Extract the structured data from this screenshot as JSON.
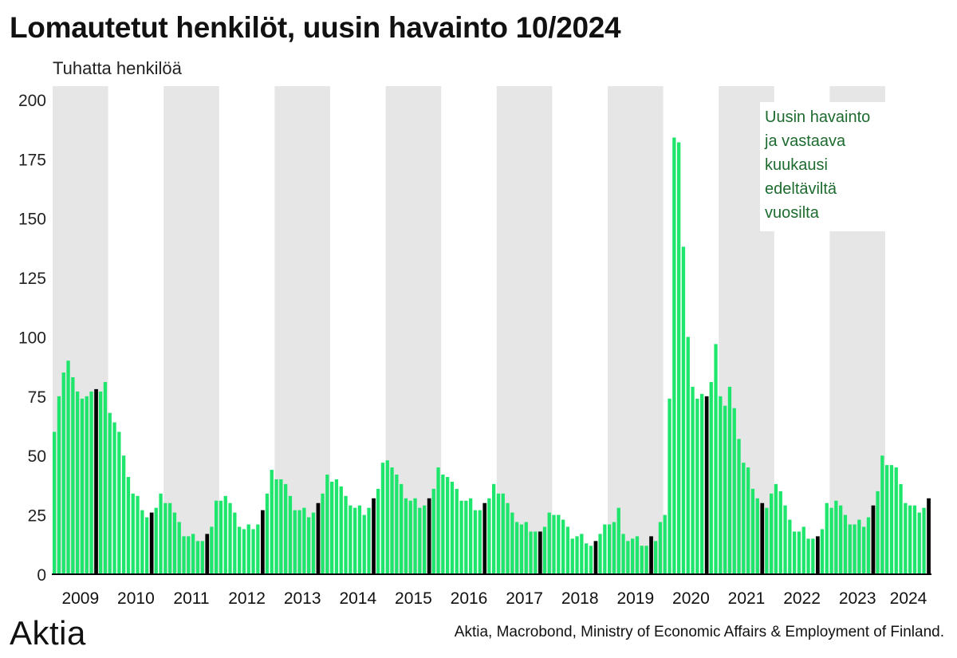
{
  "title": "Lomautetut henkilöt, uusin havainto 10/2024",
  "unit_label": "Tuhatta henkilöä",
  "annotation": "Uusin havainto ja vastaava kuukausi edeltäviltä vuosilta",
  "logo": "Aktia",
  "source": "Aktia, Macrobond, Ministry of Economic Affairs & Employment of Finland.",
  "colors": {
    "bar": "#1ee56b",
    "highlight": "#000000",
    "band": "#e6e6e6",
    "annotation_text": "#1d6b2f"
  },
  "chart_data": {
    "type": "bar",
    "title": "Lomautetut henkilöt, uusin havainto 10/2024",
    "ylabel": "Tuhatta henkilöä",
    "ylim": [
      0,
      205
    ],
    "yticks": [
      0,
      25,
      50,
      75,
      100,
      125,
      150,
      175,
      200
    ],
    "start": "2009-01",
    "end": "2024-10",
    "frequency": "monthly",
    "years": [
      "2009",
      "2010",
      "2011",
      "2012",
      "2013",
      "2014",
      "2015",
      "2016",
      "2017",
      "2018",
      "2019",
      "2020",
      "2021",
      "2022",
      "2023",
      "2024"
    ],
    "shaded_years": [
      "2009",
      "2011",
      "2013",
      "2015",
      "2017",
      "2019",
      "2021",
      "2023"
    ],
    "highlight_month": "10",
    "series": [
      {
        "values": [
          60,
          75,
          85,
          90,
          83,
          77,
          74,
          75,
          77,
          78,
          77,
          81,
          68,
          64,
          60,
          50,
          41,
          34,
          33,
          27,
          24,
          26,
          28,
          34,
          30,
          30,
          26,
          22,
          16,
          16,
          17,
          14,
          14,
          17,
          20,
          31,
          31,
          33,
          30,
          26,
          20,
          19,
          21,
          19,
          21,
          27,
          34,
          44,
          40,
          40,
          38,
          33,
          27,
          27,
          28,
          24,
          26,
          30,
          34,
          42,
          39,
          40,
          37,
          33,
          29,
          28,
          29,
          25,
          28,
          32,
          36,
          47,
          48,
          45,
          42,
          38,
          32,
          31,
          32,
          28,
          29,
          32,
          36,
          45,
          42,
          41,
          39,
          36,
          31,
          31,
          32,
          27,
          27,
          30,
          32,
          38,
          34,
          34,
          30,
          26,
          22,
          21,
          22,
          18,
          18,
          18,
          20,
          26,
          25,
          25,
          23,
          20,
          15,
          16,
          17,
          13,
          12,
          14,
          17,
          21,
          21,
          22,
          28,
          17,
          14,
          15,
          16,
          12,
          12,
          16,
          14,
          22,
          25,
          74,
          184,
          182,
          138,
          100,
          79,
          74,
          76,
          75,
          81,
          97,
          75,
          71,
          79,
          70,
          57,
          47,
          45,
          36,
          32,
          30,
          28,
          34,
          38,
          35,
          29,
          23,
          18,
          18,
          20,
          15,
          15,
          16,
          19,
          30,
          28,
          31,
          29,
          25,
          21,
          21,
          23,
          20,
          24,
          29,
          35,
          50,
          46,
          46,
          45,
          38,
          30,
          29,
          29,
          26,
          28,
          32
        ]
      }
    ]
  }
}
